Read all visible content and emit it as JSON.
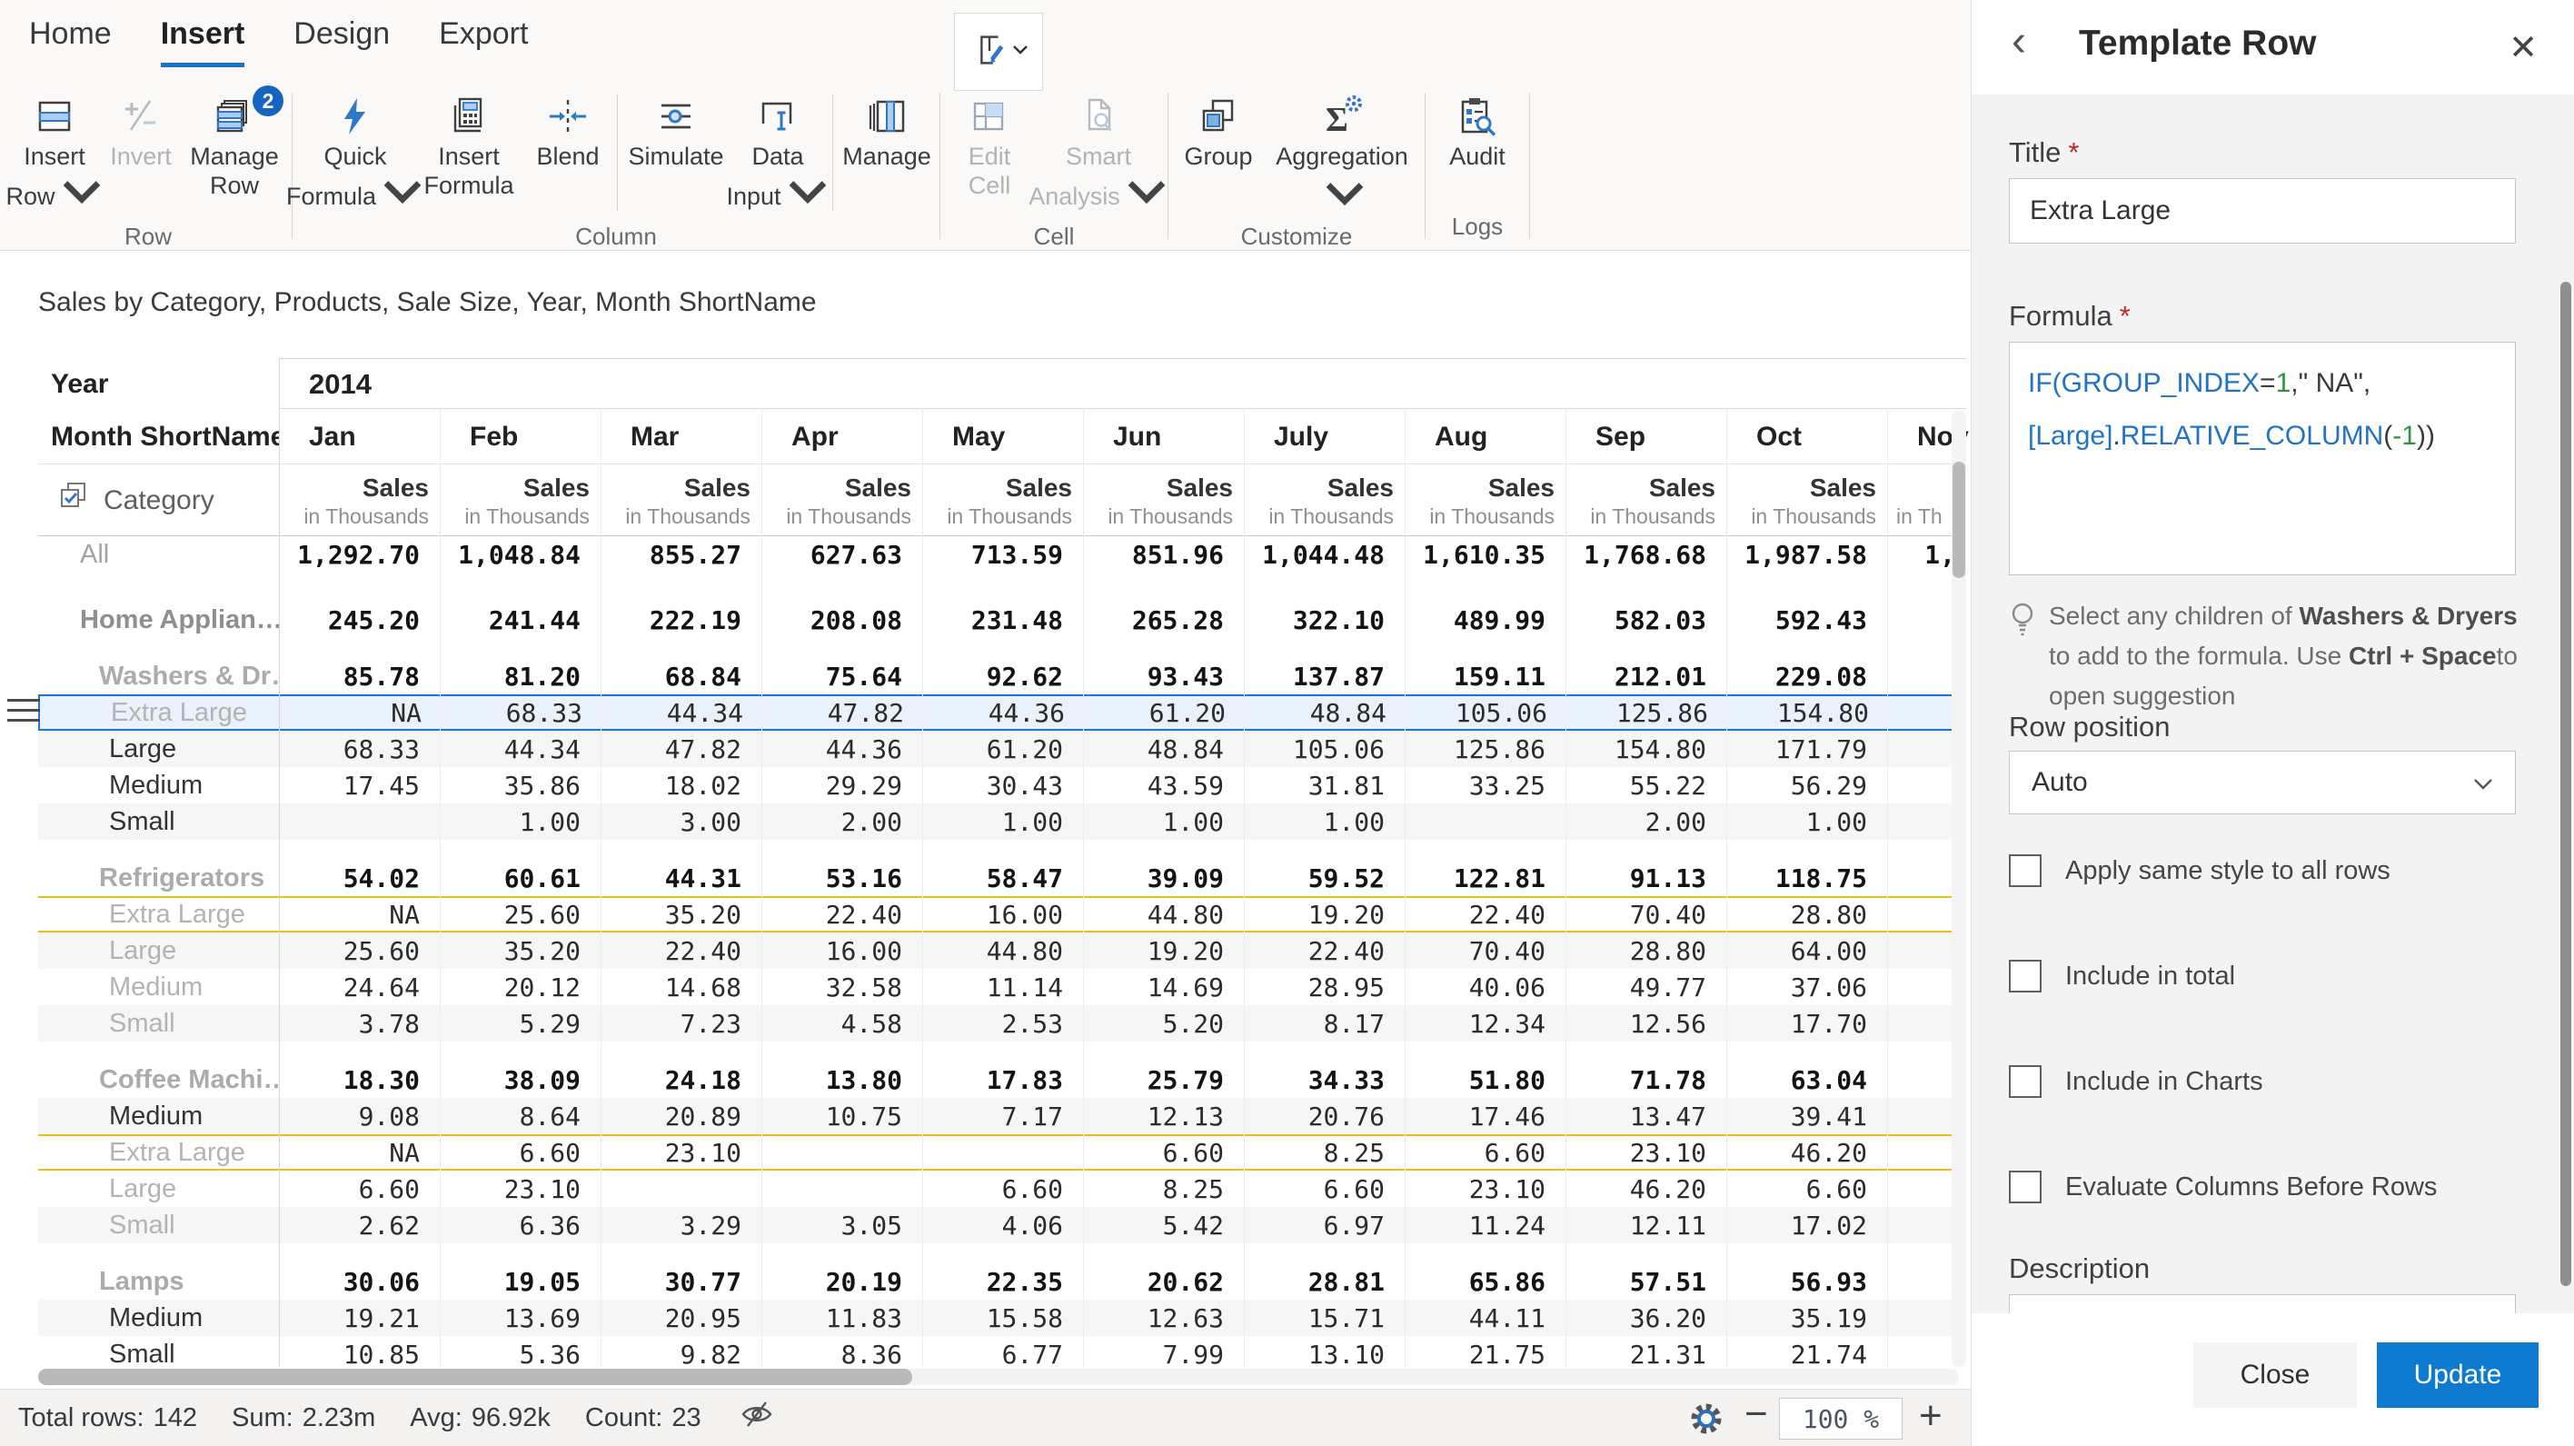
{
  "ribbon": {
    "tabs": [
      {
        "label": "Home",
        "active": false
      },
      {
        "label": "Insert",
        "active": true
      },
      {
        "label": "Design",
        "active": false
      },
      {
        "label": "Export",
        "active": false
      }
    ],
    "groups": [
      {
        "label": "Row",
        "sections": [
          [
            {
              "lines": [
                "Insert",
                "Row"
              ],
              "icon": "insert-row",
              "chevron": "inline",
              "w": 100
            },
            {
              "lines": [
                "Invert"
              ],
              "icon": "invert",
              "disabled": true,
              "w": 90
            },
            {
              "lines": [
                "Manage",
                "Row"
              ],
              "icon": "manage-row",
              "badge": "2",
              "w": 116
            }
          ]
        ]
      },
      {
        "label": "Column",
        "sections": [
          [
            {
              "lines": [
                "Quick",
                "Formula"
              ],
              "icon": "quick-formula",
              "chevron": "inline",
              "w": 128
            },
            {
              "lines": [
                "Insert",
                "Formula"
              ],
              "icon": "insert-formula",
              "w": 122
            },
            {
              "lines": [
                "Blend"
              ],
              "icon": "blend",
              "w": 96
            }
          ],
          [
            {
              "lines": [
                "Simulate"
              ],
              "icon": "simulate",
              "w": 116
            },
            {
              "lines": [
                "Data",
                "Input"
              ],
              "icon": "data-input",
              "chevron": "inline",
              "w": 108
            }
          ],
          [
            {
              "lines": [
                "Manage"
              ],
              "icon": "manage-col",
              "w": 106
            }
          ]
        ]
      },
      {
        "label": "Cell",
        "sections": [
          [
            {
              "lines": [
                "Edit",
                "Cell"
              ],
              "icon": "edit-cell",
              "disabled": true,
              "w": 98
            },
            {
              "lines": [
                "Smart",
                "Analysis"
              ],
              "icon": "smart-analysis",
              "chevron": "inline",
              "disabled": true,
              "w": 142
            }
          ]
        ]
      },
      {
        "label": "Customize",
        "sections": [
          [
            {
              "lines": [
                "Group"
              ],
              "icon": "group",
              "w": 100
            },
            {
              "lines": [
                "Aggregation"
              ],
              "icon": "aggregation",
              "chevron": "below",
              "w": 172
            }
          ]
        ]
      },
      {
        "label": "Logs",
        "sections": [
          [
            {
              "lines": [
                "Audit"
              ],
              "icon": "audit",
              "w": 104
            }
          ]
        ]
      }
    ]
  },
  "table": {
    "title": "Sales by Category, Products, Sale Size, Year, Month ShortName",
    "year_label": "Year",
    "year_value": "2014",
    "month_label": "Month ShortName",
    "months": [
      "Jan",
      "Feb",
      "Mar",
      "Apr",
      "May",
      "Jun",
      "July",
      "Aug",
      "Sep",
      "Oct"
    ],
    "month_partial": "Nov",
    "category_label": "Category",
    "measure_line1": "Sales",
    "measure_line2": "in Thousands",
    "measure_partial": "in Th",
    "rows": [
      {
        "label": "All",
        "type": "total",
        "nov": "1,",
        "values": [
          "1,292.70",
          "1,048.84",
          "855.27",
          "627.63",
          "713.59",
          "851.96",
          "1,044.48",
          "1,610.35",
          "1,768.68",
          "1,987.58"
        ]
      },
      {
        "label": "Home Applian…",
        "type": "group1",
        "spacer": 32,
        "values": [
          "245.20",
          "241.44",
          "222.19",
          "208.08",
          "231.48",
          "265.28",
          "322.10",
          "489.99",
          "582.03",
          "592.43"
        ]
      },
      {
        "label": "Washers & Dr…",
        "type": "group2",
        "spacer": 22,
        "values": [
          "85.78",
          "81.20",
          "68.84",
          "75.64",
          "92.62",
          "93.43",
          "137.87",
          "159.11",
          "212.01",
          "229.08"
        ]
      },
      {
        "label": "Extra Large",
        "type": "leaf",
        "dim": true,
        "selected": true,
        "values": [
          "NA",
          "68.33",
          "44.34",
          "47.82",
          "44.36",
          "61.20",
          "48.84",
          "105.06",
          "125.86",
          "154.80"
        ]
      },
      {
        "label": "Large",
        "type": "leaf",
        "stripe": true,
        "values": [
          "68.33",
          "44.34",
          "47.82",
          "44.36",
          "61.20",
          "48.84",
          "105.06",
          "125.86",
          "154.80",
          "171.79"
        ]
      },
      {
        "label": "Medium",
        "type": "leaf",
        "values": [
          "17.45",
          "35.86",
          "18.02",
          "29.29",
          "30.43",
          "43.59",
          "31.81",
          "33.25",
          "55.22",
          "56.29"
        ]
      },
      {
        "label": "Small",
        "type": "leaf",
        "stripe": true,
        "values": [
          "",
          "1.00",
          "3.00",
          "2.00",
          "1.00",
          "1.00",
          "1.00",
          "",
          "2.00",
          "1.00"
        ]
      },
      {
        "label": "Refrigerators",
        "type": "group2",
        "spacer": 22,
        "values": [
          "54.02",
          "60.61",
          "44.31",
          "53.16",
          "58.47",
          "39.09",
          "59.52",
          "122.81",
          "91.13",
          "118.75"
        ]
      },
      {
        "label": "Extra Large",
        "type": "leaf",
        "dim": true,
        "template": true,
        "values": [
          "NA",
          "25.60",
          "35.20",
          "22.40",
          "16.00",
          "44.80",
          "19.20",
          "22.40",
          "70.40",
          "28.80"
        ]
      },
      {
        "label": "Large",
        "type": "leaf",
        "dim": true,
        "stripe": true,
        "values": [
          "25.60",
          "35.20",
          "22.40",
          "16.00",
          "44.80",
          "19.20",
          "22.40",
          "70.40",
          "28.80",
          "64.00"
        ]
      },
      {
        "label": "Medium",
        "type": "leaf",
        "dim": true,
        "values": [
          "24.64",
          "20.12",
          "14.68",
          "32.58",
          "11.14",
          "14.69",
          "28.95",
          "40.06",
          "49.77",
          "37.06"
        ]
      },
      {
        "label": "Small",
        "type": "leaf",
        "dim": true,
        "stripe": true,
        "values": [
          "3.78",
          "5.29",
          "7.23",
          "4.58",
          "2.53",
          "5.20",
          "8.17",
          "12.34",
          "12.56",
          "17.70"
        ]
      },
      {
        "label": "Coffee Machi…",
        "type": "group2",
        "spacer": 22,
        "values": [
          "18.30",
          "38.09",
          "24.18",
          "13.80",
          "17.83",
          "25.79",
          "34.33",
          "51.80",
          "71.78",
          "63.04"
        ]
      },
      {
        "label": "Medium",
        "type": "leaf",
        "stripe": true,
        "values": [
          "9.08",
          "8.64",
          "20.89",
          "10.75",
          "7.17",
          "12.13",
          "20.76",
          "17.46",
          "13.47",
          "39.41"
        ]
      },
      {
        "label": "Extra Large",
        "type": "leaf",
        "dim": true,
        "template": true,
        "values": [
          "NA",
          "6.60",
          "23.10",
          "",
          "",
          "6.60",
          "8.25",
          "6.60",
          "23.10",
          "46.20"
        ]
      },
      {
        "label": "Large",
        "type": "leaf",
        "dim": true,
        "values": [
          "6.60",
          "23.10",
          "",
          "",
          "6.60",
          "8.25",
          "6.60",
          "23.10",
          "46.20",
          "6.60"
        ]
      },
      {
        "label": "Small",
        "type": "leaf",
        "dim": true,
        "stripe": true,
        "values": [
          "2.62",
          "6.36",
          "3.29",
          "3.05",
          "4.06",
          "5.42",
          "6.97",
          "11.24",
          "12.11",
          "17.02"
        ]
      },
      {
        "label": "Lamps",
        "type": "group2",
        "spacer": 22,
        "values": [
          "30.06",
          "19.05",
          "30.77",
          "20.19",
          "22.35",
          "20.62",
          "28.81",
          "65.86",
          "57.51",
          "56.93"
        ]
      },
      {
        "label": "Medium",
        "type": "leaf",
        "stripe": true,
        "values": [
          "19.21",
          "13.69",
          "20.95",
          "11.83",
          "15.58",
          "12.63",
          "15.71",
          "44.11",
          "36.20",
          "35.19"
        ]
      },
      {
        "label": "Small",
        "type": "leaf",
        "values": [
          "10.85",
          "5.36",
          "9.82",
          "8.36",
          "6.77",
          "7.99",
          "13.10",
          "21.75",
          "21.31",
          "21.74"
        ]
      }
    ]
  },
  "status": {
    "items": [
      {
        "label": "Total rows:",
        "value": "142"
      },
      {
        "label": "Sum:",
        "value": "2.23m"
      },
      {
        "label": "Avg:",
        "value": "96.92k"
      },
      {
        "label": "Count:",
        "value": "23"
      }
    ],
    "zoom": "100 %"
  },
  "panel": {
    "title": "Template Row",
    "title_field_label": "Title",
    "title_value": "Extra Large",
    "formula_field_label": "Formula",
    "formula_tokens": [
      {
        "text": "IF(",
        "c": "blue"
      },
      {
        "text": "GROUP_INDEX",
        "c": "blue"
      },
      {
        "text": "=",
        "c": "dark"
      },
      {
        "text": "1",
        "c": "green"
      },
      {
        "text": ",\" NA\",",
        "c": "dark"
      },
      {
        "br": true
      },
      {
        "text": "[Large]",
        "c": "blue"
      },
      {
        "text": ".",
        "c": "dark"
      },
      {
        "text": "RELATIVE_COLUMN",
        "c": "blue"
      },
      {
        "text": "(",
        "c": "dark"
      },
      {
        "text": "-1",
        "c": "green"
      },
      {
        "text": "))",
        "c": "dark"
      }
    ],
    "hint": {
      "seg1": "Select any children of ",
      "bold1": "Washers & Dryers",
      "seg2": " to add to the formula. Use ",
      "bold2": "Ctrl + Space",
      "seg3": "to open suggestion"
    },
    "row_position": {
      "label": "Row position",
      "value": "Auto"
    },
    "checkboxes": [
      {
        "label": "Apply same style to all rows",
        "checked": false
      },
      {
        "label": "Include in total",
        "checked": false
      },
      {
        "label": "Include in Charts",
        "checked": false
      },
      {
        "label": "Evaluate Columns Before Rows",
        "checked": false
      }
    ],
    "description_label": "Description",
    "footer": {
      "close": "Close",
      "update": "Update"
    }
  },
  "colors": {
    "accent": "#1673c9",
    "selection_border": "#1a77d2",
    "selection_bg": "#e9f2fb",
    "template_row_border": "#e7bf16",
    "badge": "#1565c0",
    "update_button": "#0f7bd0",
    "formula_keyword": "#2273c3",
    "formula_number": "#2e9442"
  }
}
